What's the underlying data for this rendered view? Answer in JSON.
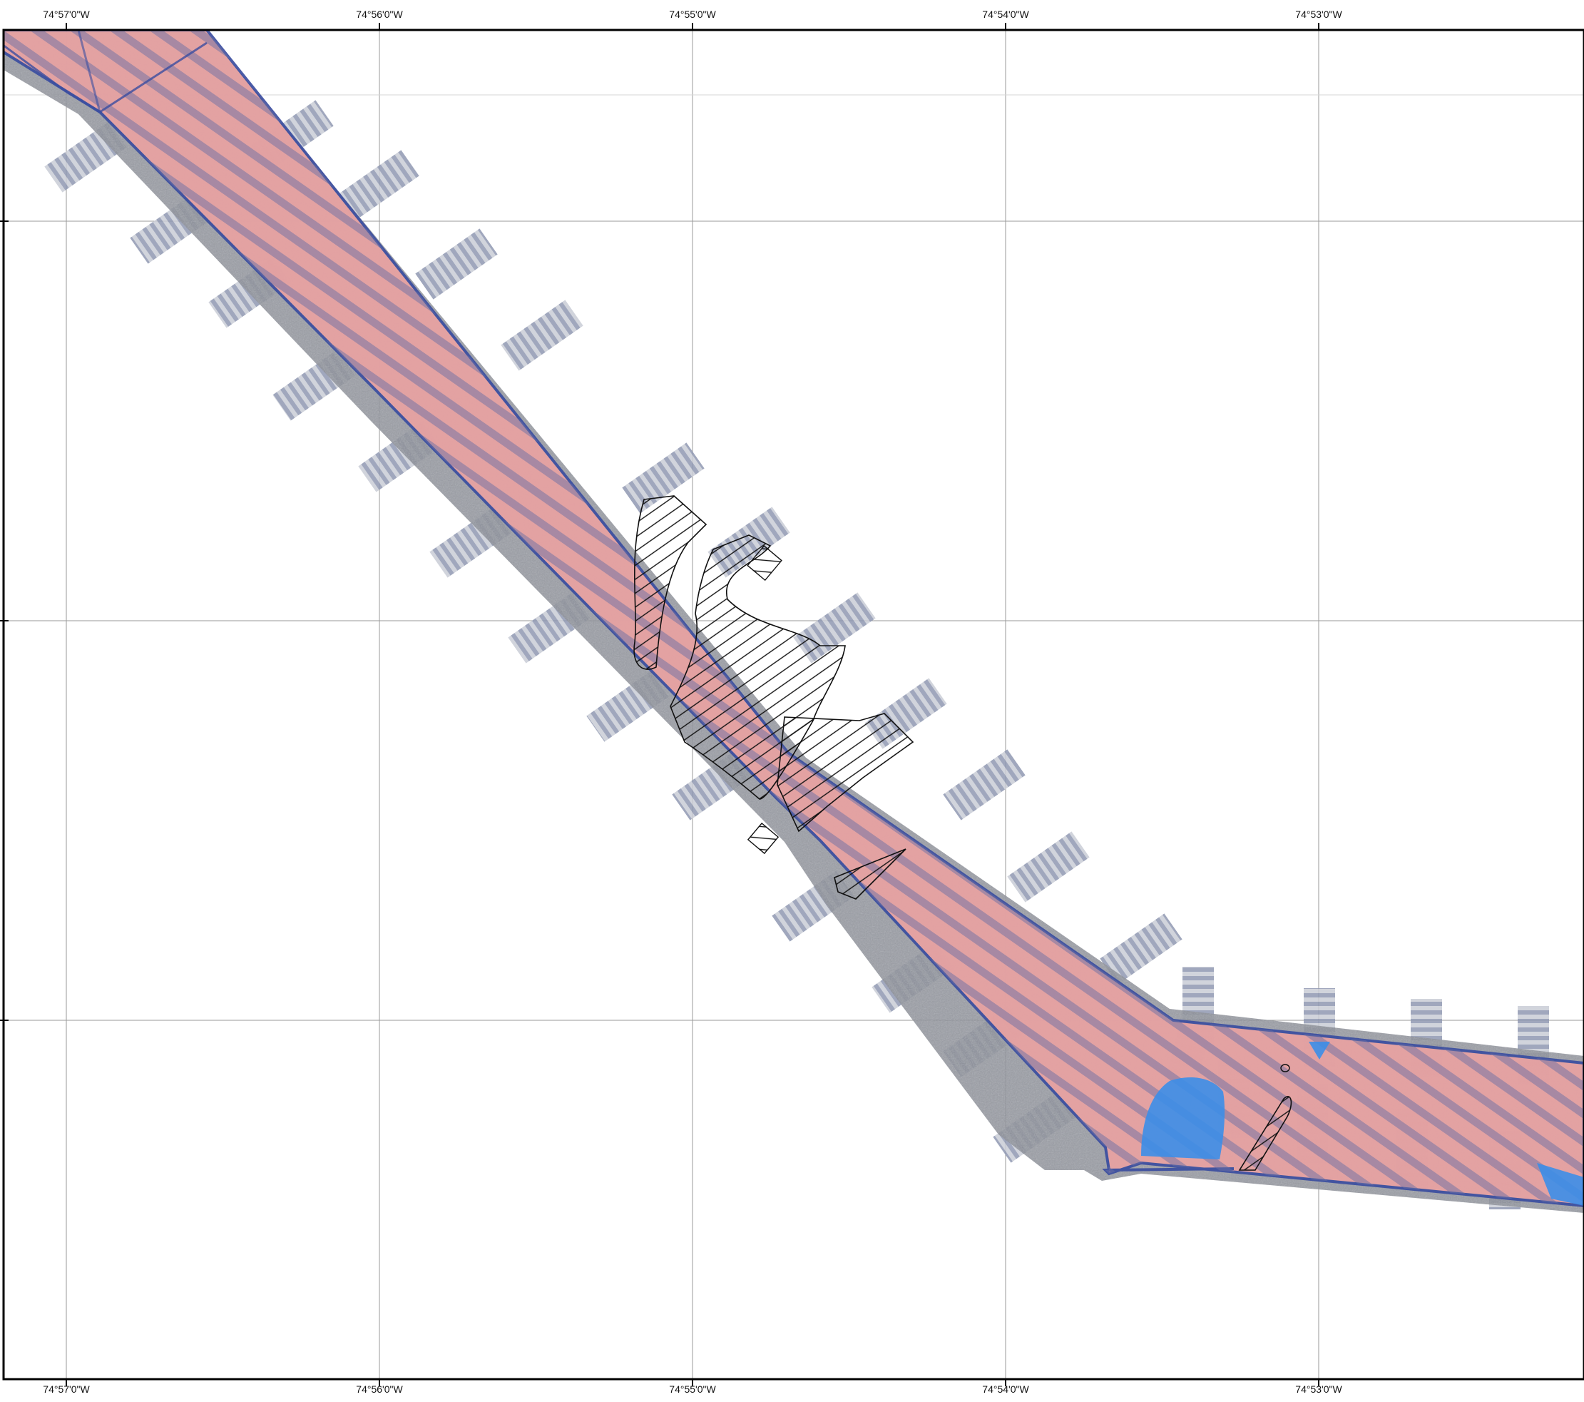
{
  "map": {
    "graticule": {
      "longitudes": [
        "74°57'0\"W",
        "74°56'0\"W",
        "74°55'0\"W",
        "74°54'0\"W",
        "74°53'0\"W"
      ],
      "latitude_lines": 4,
      "grid": true
    },
    "layers": {
      "survey_corridor": {
        "name": "survey-corridor",
        "fill": "#e9a2a2",
        "outline": "#3b4ea0"
      },
      "backscatter_mosaic": {
        "name": "backscatter-mosaic",
        "color": "#7d8290"
      },
      "crosslines": {
        "name": "crosslines",
        "color": "#8e97ae"
      },
      "hatched_polygons": {
        "name": "hatched-polygons",
        "stroke": "#111111"
      },
      "blue_areas": {
        "name": "blue-areas",
        "fill": "#3c8ee8"
      }
    },
    "colors": {
      "frame": "#000000",
      "grid": "#9a9a9a",
      "stripe": "#6c6fa0"
    }
  }
}
